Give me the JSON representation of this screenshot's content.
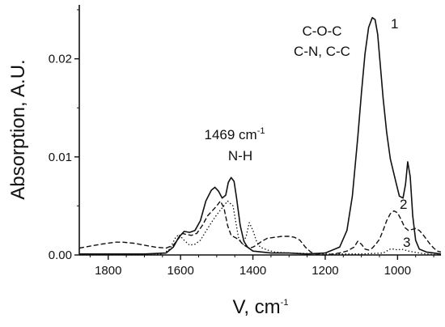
{
  "chart_data": {
    "type": "line",
    "title": "",
    "xlabel": "V, cm",
    "xlabel_sup": "-1",
    "ylabel": "Absorption, A.U.",
    "xlim": [
      1880,
      880
    ],
    "x_reversed": true,
    "ylim": [
      0,
      0.0255
    ],
    "xticks": [
      1800,
      1600,
      1400,
      1200,
      1000
    ],
    "yticks": [
      0.0,
      0.01,
      0.02
    ],
    "ytick_labels": [
      "0.00",
      "0.01",
      "0.02"
    ],
    "grid": false,
    "colors": {
      "line": "#111111",
      "background": "#ffffff"
    },
    "series": [
      {
        "name": "1",
        "style": "solid",
        "x": [
          1880,
          1800,
          1700,
          1640,
          1620,
          1605,
          1590,
          1575,
          1560,
          1545,
          1530,
          1515,
          1505,
          1495,
          1485,
          1475,
          1468,
          1460,
          1452,
          1445,
          1435,
          1425,
          1415,
          1400,
          1350,
          1300,
          1250,
          1200,
          1160,
          1140,
          1125,
          1110,
          1100,
          1090,
          1080,
          1070,
          1062,
          1055,
          1048,
          1040,
          1030,
          1020,
          1005,
          995,
          985,
          978,
          972,
          965,
          958,
          950,
          940,
          920,
          900,
          880
        ],
        "y": [
          0.0001,
          0.0001,
          0.0001,
          0.0002,
          0.0008,
          0.0018,
          0.0024,
          0.0023,
          0.0025,
          0.0035,
          0.0055,
          0.0066,
          0.0069,
          0.0065,
          0.0058,
          0.0061,
          0.0074,
          0.0079,
          0.0075,
          0.0058,
          0.003,
          0.0014,
          0.0008,
          0.0004,
          0.0002,
          0.0002,
          0.0001,
          0.0002,
          0.0008,
          0.0025,
          0.006,
          0.012,
          0.0165,
          0.0205,
          0.0232,
          0.0242,
          0.024,
          0.0225,
          0.0195,
          0.016,
          0.0125,
          0.0098,
          0.0075,
          0.006,
          0.0058,
          0.0072,
          0.0095,
          0.008,
          0.004,
          0.0015,
          0.0006,
          0.0003,
          0.0002,
          0.0001
        ]
      },
      {
        "name": "2",
        "style": "dashed",
        "x": [
          1880,
          1820,
          1780,
          1760,
          1730,
          1700,
          1670,
          1640,
          1620,
          1605,
          1595,
          1585,
          1570,
          1555,
          1540,
          1525,
          1510,
          1500,
          1490,
          1480,
          1470,
          1460,
          1450,
          1440,
          1430,
          1420,
          1410,
          1400,
          1390,
          1375,
          1360,
          1340,
          1320,
          1300,
          1285,
          1270,
          1255,
          1240,
          1225,
          1210,
          1195,
          1180,
          1160,
          1140,
          1120,
          1110,
          1100,
          1090,
          1080,
          1070,
          1060,
          1050,
          1040,
          1030,
          1020,
          1010,
          1000,
          990,
          980,
          970,
          960,
          950,
          940,
          930,
          920,
          910,
          900,
          890,
          880
        ],
        "y": [
          0.0007,
          0.0011,
          0.0013,
          0.0013,
          0.0012,
          0.001,
          0.0008,
          0.0007,
          0.001,
          0.0017,
          0.0022,
          0.0021,
          0.002,
          0.0022,
          0.003,
          0.004,
          0.0046,
          0.005,
          0.0055,
          0.0048,
          0.003,
          0.002,
          0.0018,
          0.0016,
          0.0012,
          0.0009,
          0.0007,
          0.0008,
          0.001,
          0.0014,
          0.0017,
          0.0018,
          0.0019,
          0.0019,
          0.0018,
          0.0015,
          0.0008,
          0.0003,
          0.0001,
          0.0,
          0.0,
          0.0001,
          0.0002,
          0.0004,
          0.0008,
          0.0014,
          0.0011,
          0.0006,
          0.0005,
          0.0007,
          0.0011,
          0.0016,
          0.0025,
          0.0035,
          0.0042,
          0.0045,
          0.0043,
          0.0036,
          0.0028,
          0.0025,
          0.0026,
          0.0027,
          0.0025,
          0.0021,
          0.0016,
          0.0011,
          0.0007,
          0.0004,
          0.0003
        ]
      },
      {
        "name": "3",
        "style": "dotted",
        "x": [
          1880,
          1700,
          1650,
          1630,
          1615,
          1605,
          1590,
          1575,
          1560,
          1545,
          1530,
          1515,
          1500,
          1485,
          1470,
          1455,
          1440,
          1428,
          1418,
          1410,
          1400,
          1390,
          1380,
          1360,
          1340,
          1300,
          1200,
          1100,
          1040,
          1030,
          1020,
          1010,
          1000,
          990,
          980,
          970,
          955,
          940,
          920,
          880
        ],
        "y": [
          0.0,
          0.0,
          0.0001,
          0.0006,
          0.0017,
          0.0021,
          0.0015,
          0.001,
          0.0011,
          0.0015,
          0.0024,
          0.0033,
          0.0041,
          0.0048,
          0.0055,
          0.005,
          0.0018,
          0.001,
          0.002,
          0.0033,
          0.0025,
          0.0014,
          0.0008,
          0.0005,
          0.0003,
          0.0002,
          0.0001,
          0.0001,
          0.0002,
          0.0004,
          0.0006,
          0.0006,
          0.0005,
          0.0006,
          0.0005,
          0.0004,
          0.0003,
          0.0002,
          0.0001,
          0.0
        ]
      }
    ],
    "series_labels": [
      "1",
      "2",
      "3"
    ],
    "annotations": [
      {
        "id": "band-1469",
        "lines": [
          "1469 cm",
          "N-H"
        ],
        "sup": "-1"
      },
      {
        "id": "band-coc",
        "lines": [
          "C-O-C",
          "C-N, C-C"
        ]
      }
    ]
  }
}
